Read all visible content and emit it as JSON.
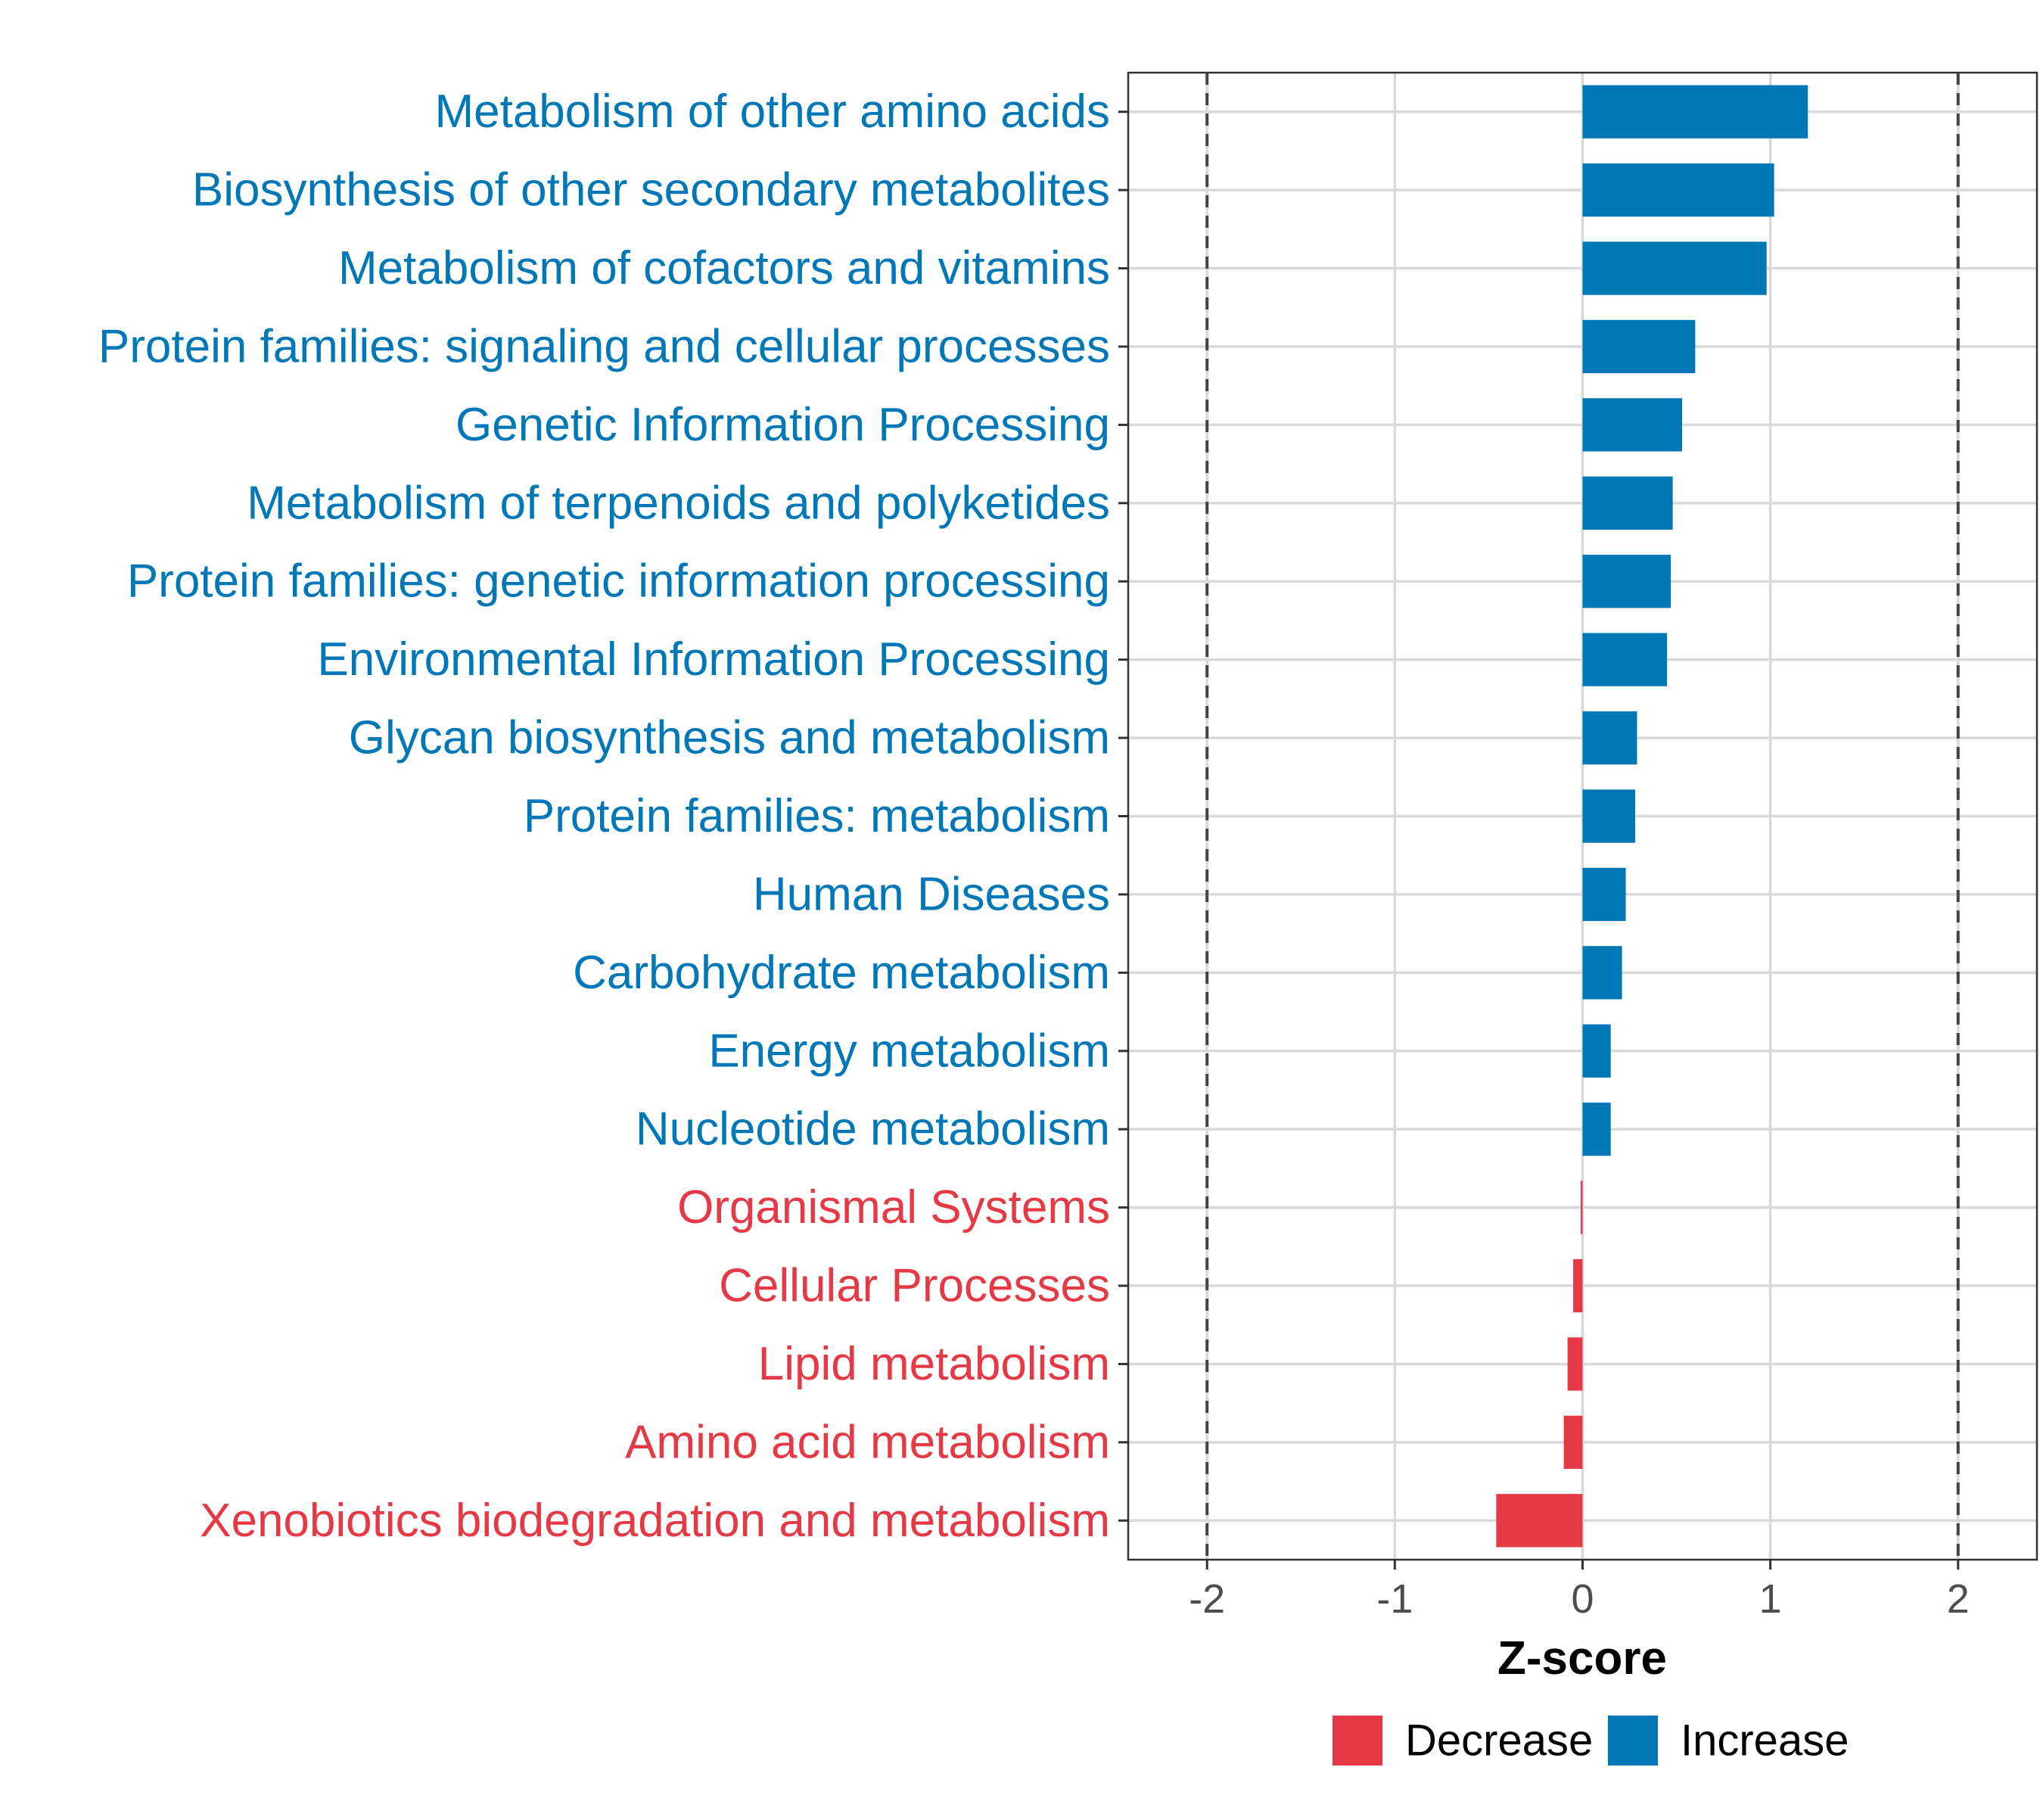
{
  "chart_data": {
    "type": "bar",
    "orientation": "horizontal",
    "title": "",
    "xlabel": "Z-score",
    "ylabel": "",
    "xlim": [
      -2.42,
      2.42
    ],
    "x_ticks": [
      -2,
      -1,
      0,
      1,
      2
    ],
    "x_tick_labels": [
      "-2",
      "-1",
      "0",
      "1",
      "2"
    ],
    "reference_lines": [
      -2,
      2
    ],
    "grid": true,
    "legend_position": "bottom",
    "colors": {
      "Decrease": "#E63946",
      "Increase": "#0077B6"
    },
    "legend": [
      {
        "label": "Decrease",
        "color": "#E63946"
      },
      {
        "label": "Increase",
        "color": "#0077B6"
      }
    ],
    "categories": [
      "Metabolism of other amino acids",
      "Biosynthesis of other secondary metabolites",
      "Metabolism of cofactors and vitamins",
      "Protein families: signaling and cellular processes",
      "Genetic Information Processing",
      "Metabolism of terpenoids and polyketides",
      "Protein families: genetic information processing",
      "Environmental Information Processing",
      "Glycan biosynthesis and metabolism",
      "Protein families: metabolism",
      "Human Diseases",
      "Carbohydrate metabolism",
      "Energy metabolism",
      "Nucleotide metabolism",
      "Organismal Systems",
      "Cellular Processes",
      "Lipid metabolism",
      "Amino acid metabolism",
      "Xenobiotics biodegradation and metabolism"
    ],
    "values": [
      1.2,
      1.02,
      0.98,
      0.6,
      0.53,
      0.48,
      0.47,
      0.45,
      0.29,
      0.28,
      0.23,
      0.21,
      0.15,
      0.15,
      -0.01,
      -0.05,
      -0.08,
      -0.1,
      -0.46
    ],
    "groups": [
      "Increase",
      "Increase",
      "Increase",
      "Increase",
      "Increase",
      "Increase",
      "Increase",
      "Increase",
      "Increase",
      "Increase",
      "Increase",
      "Increase",
      "Increase",
      "Increase",
      "Decrease",
      "Decrease",
      "Decrease",
      "Decrease",
      "Decrease"
    ]
  }
}
